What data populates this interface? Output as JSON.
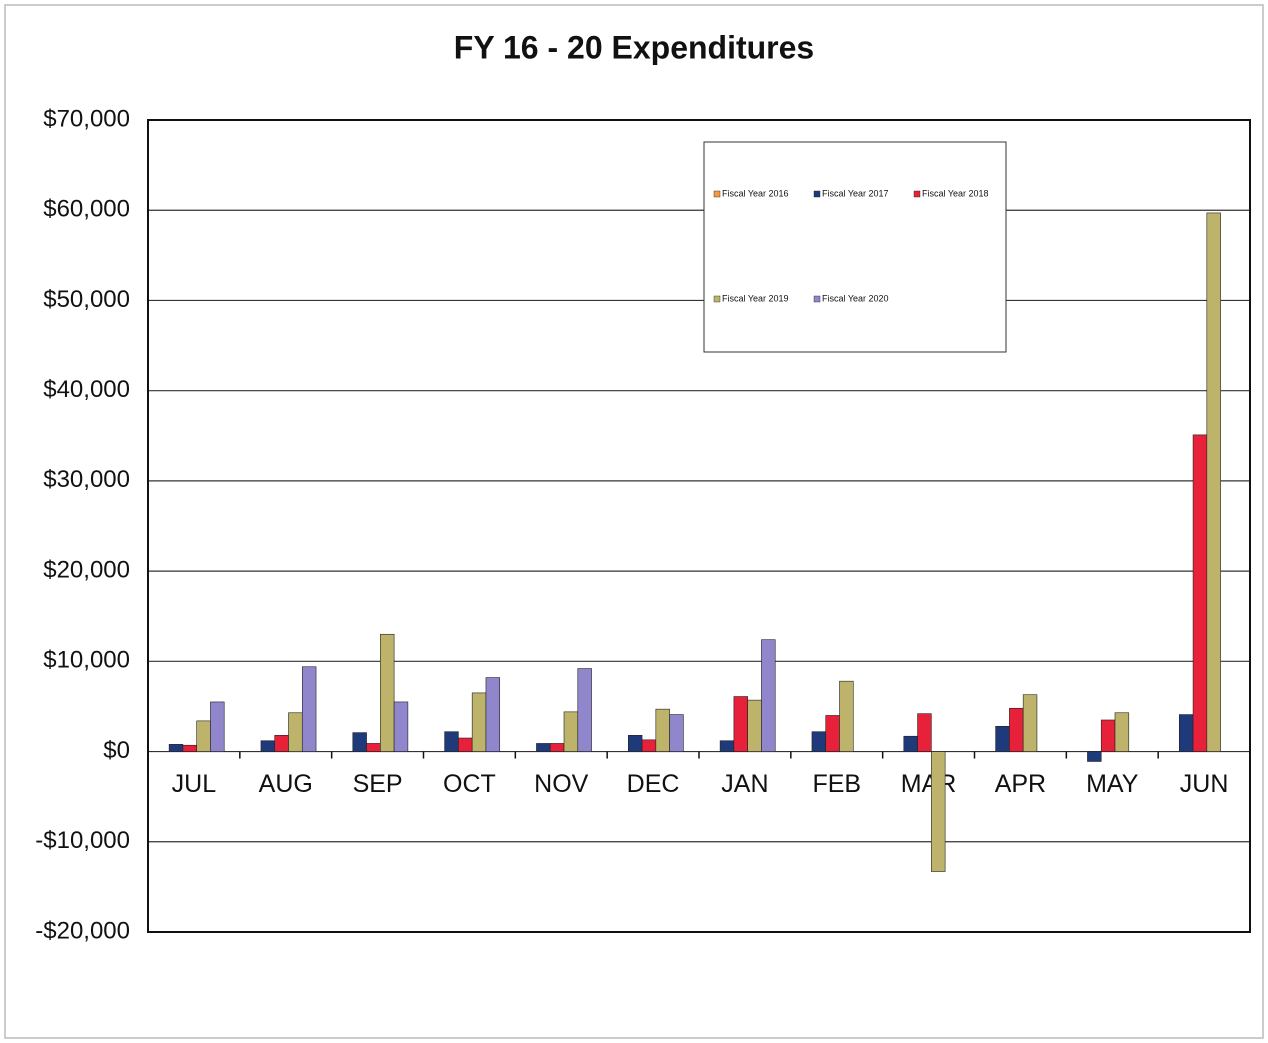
{
  "chart_data": {
    "type": "bar",
    "title": "FY 16 - 20 Expenditures",
    "categories": [
      "JUL",
      "AUG",
      "SEP",
      "OCT",
      "NOV",
      "DEC",
      "JAN",
      "FEB",
      "MAR",
      "APR",
      "MAY",
      "JUN"
    ],
    "series": [
      {
        "name": "Fiscal Year 2016",
        "color": "#f79a3c",
        "values": [
          null,
          null,
          null,
          null,
          null,
          null,
          null,
          null,
          null,
          null,
          null,
          null
        ]
      },
      {
        "name": "Fiscal Year 2017",
        "color": "#1f3a7a",
        "values": [
          800,
          1200,
          2100,
          2200,
          900,
          1800,
          1200,
          2200,
          1700,
          2800,
          -1100,
          4100
        ]
      },
      {
        "name": "Fiscal Year 2018",
        "color": "#e8213a",
        "values": [
          700,
          1800,
          900,
          1500,
          900,
          1300,
          6100,
          4000,
          4200,
          4800,
          3500,
          35100
        ]
      },
      {
        "name": "Fiscal Year 2019",
        "color": "#bdb36a",
        "values": [
          3400,
          4300,
          13000,
          6500,
          4400,
          4700,
          5700,
          7800,
          -13300,
          6300,
          4300,
          59700
        ]
      },
      {
        "name": "Fiscal Year 2020",
        "color": "#8f86cc",
        "values": [
          5500,
          9400,
          5500,
          8200,
          9200,
          4100,
          12400,
          null,
          null,
          null,
          null,
          null
        ]
      }
    ],
    "ylim": [
      -20000,
      70000
    ],
    "yticks": [
      {
        "value": -20000,
        "label": "-$20,000"
      },
      {
        "value": -10000,
        "label": "-$10,000"
      },
      {
        "value": 0,
        "label": "$0"
      },
      {
        "value": 10000,
        "label": "$10,000"
      },
      {
        "value": 20000,
        "label": "$20,000"
      },
      {
        "value": 30000,
        "label": "$30,000"
      },
      {
        "value": 40000,
        "label": "$40,000"
      },
      {
        "value": 50000,
        "label": "$50,000"
      },
      {
        "value": 60000,
        "label": "$60,000"
      },
      {
        "value": 70000,
        "label": "$70,000"
      }
    ],
    "grid": true,
    "legend": "top-right"
  }
}
